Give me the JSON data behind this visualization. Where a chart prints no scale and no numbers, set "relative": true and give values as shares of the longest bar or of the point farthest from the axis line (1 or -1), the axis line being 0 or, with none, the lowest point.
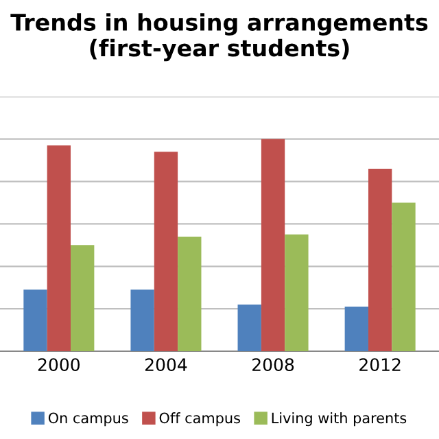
{
  "chart_data": {
    "type": "bar",
    "title": "Trends in housing arrangements\n(first-year students)",
    "relative": true,
    "categories": [
      "2000",
      "2004",
      "2008",
      "2012"
    ],
    "series": [
      {
        "name": "On campus",
        "color": "#4f81bd",
        "values": [
          0.29,
          0.29,
          0.22,
          0.21
        ]
      },
      {
        "name": "Off campus",
        "color": "#c0504d",
        "values": [
          0.97,
          0.94,
          1,
          0.86
        ]
      },
      {
        "name": "Living with parents",
        "color": "#9bbb59",
        "values": [
          0.5,
          0.54,
          0.55,
          0.7
        ]
      }
    ],
    "grid": "y",
    "legend": "bottom"
  }
}
